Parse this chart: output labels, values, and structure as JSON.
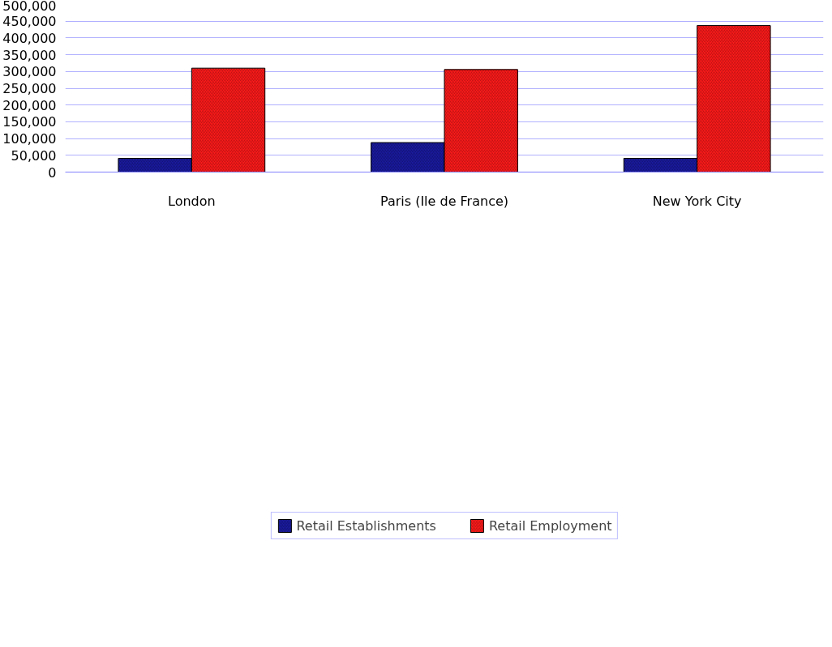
{
  "chart_data": {
    "type": "bar",
    "categories": [
      "London",
      "Paris (Ile de France)",
      "New York City"
    ],
    "series": [
      {
        "name": "Retail Establishments",
        "color": "#1a1aa0",
        "values": [
          41000,
          88000,
          41000
        ]
      },
      {
        "name": "Retail Employment",
        "color": "#ff1a1a",
        "values": [
          310000,
          306000,
          437000
        ]
      }
    ],
    "ylim": [
      0,
      500000
    ],
    "yticks": [
      {
        "value": 0,
        "label": "0"
      },
      {
        "value": 50000,
        "label": "50,000"
      },
      {
        "value": 100000,
        "label": "100,000"
      },
      {
        "value": 150000,
        "label": "150,000"
      },
      {
        "value": 200000,
        "label": "200,000"
      },
      {
        "value": 250000,
        "label": "250,000"
      },
      {
        "value": 300000,
        "label": "300,000"
      },
      {
        "value": 350000,
        "label": "350,000"
      },
      {
        "value": 400000,
        "label": "400,000"
      },
      {
        "value": 450000,
        "label": "450,000"
      },
      {
        "value": 500000,
        "label": "500,000"
      }
    ],
    "grid": "y",
    "legend": "bottom"
  }
}
